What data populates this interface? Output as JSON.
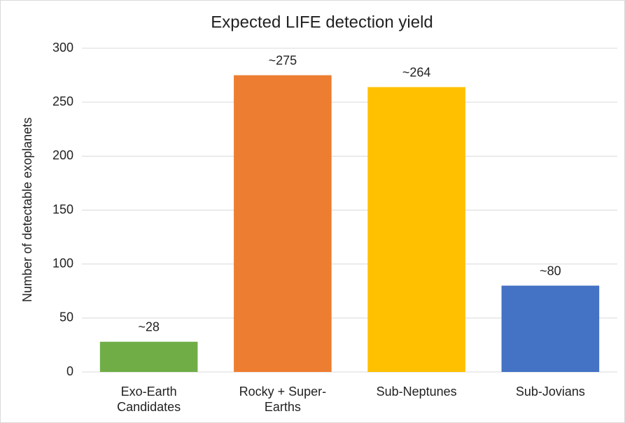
{
  "chart_data": {
    "type": "bar",
    "title": "Expected LIFE detection yield",
    "y_label": "Number of detectable exoplanets",
    "categories": [
      "Exo-Earth Candidates",
      "Rocky + Super-Earths",
      "Sub-Neptunes",
      "Sub-Jovians"
    ],
    "values": [
      28,
      275,
      264,
      80
    ],
    "value_labels": [
      "~28",
      "~275",
      "~264",
      "~80"
    ],
    "colors": [
      "#70ad47",
      "#ed7d31",
      "#ffc000",
      "#4472c4"
    ],
    "ylim": [
      0,
      300
    ],
    "yticks": [
      0,
      50,
      100,
      150,
      200,
      250,
      300
    ],
    "grid": true
  }
}
